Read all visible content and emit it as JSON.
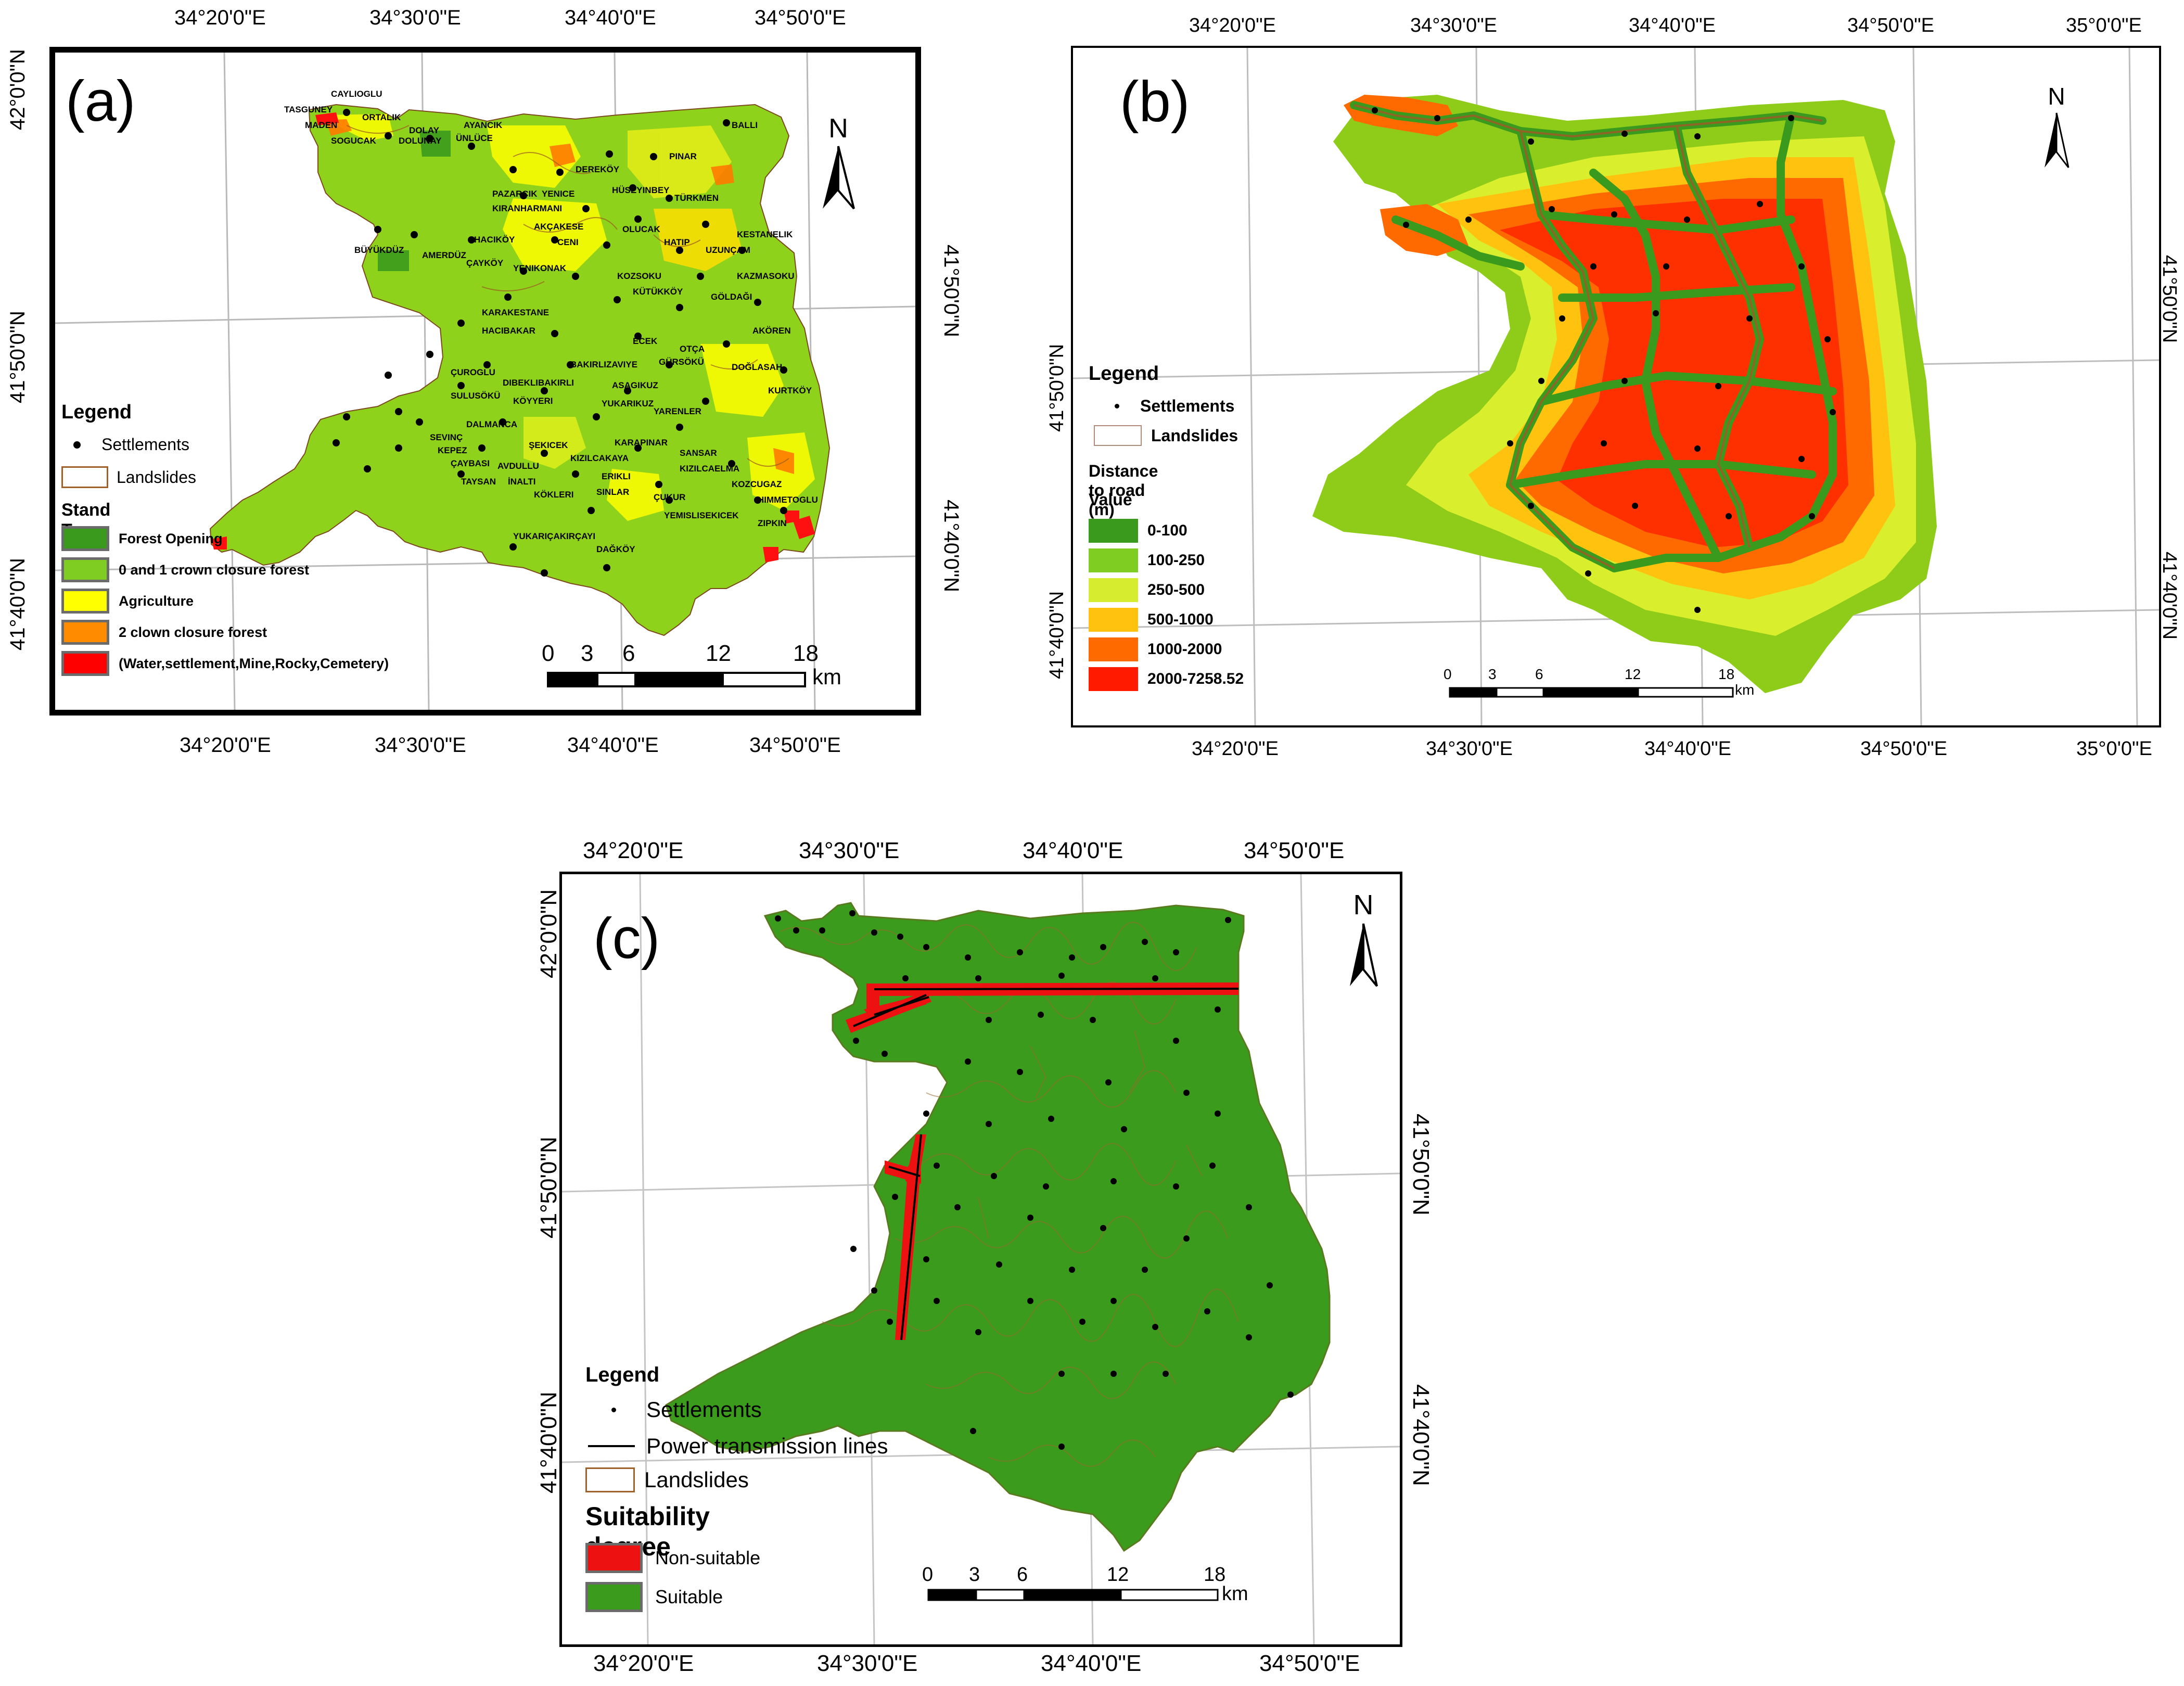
{
  "panel_a": {
    "label": "(a)",
    "top_ticks": [
      "34°20'0\"E",
      "34°30'0\"E",
      "34°40'0\"E",
      "34°50'0\"E"
    ],
    "bottom_ticks": [
      "34°20'0\"E",
      "34°30'0\"E",
      "34°40'0\"E",
      "34°50'0\"E"
    ],
    "left_ticks": [
      "42°0'0\"N",
      "41°50'0\"N",
      "41°40'0\"N"
    ],
    "right_ticks": [
      "41°50'0\"N",
      "41°40'0\"N"
    ],
    "legend": {
      "title": "Legend",
      "settlements": "Settlements",
      "landslides": "Landslides",
      "stand_type_title": "Stand Type",
      "classes": [
        {
          "label": "Forest Opening",
          "color": "#3a9a1e"
        },
        {
          "label": "0 and 1 crown closure forest",
          "color": "#7fcc22"
        },
        {
          "label": "Agriculture",
          "color": "#ffff00"
        },
        {
          "label": "2 clown closure forest",
          "color": "#ff8c00"
        },
        {
          "label": "(Water,settlement,Mine,Rocky,Cemetery)",
          "color": "#ff0000"
        }
      ]
    },
    "north": "N",
    "scale": {
      "ticks": [
        "0",
        "3",
        "6",
        "12",
        "18"
      ],
      "unit": "km"
    },
    "places": [
      "CAYLIOGLU",
      "TASGUNEY",
      "ORTALIK",
      "MADEN",
      "DOLAY",
      "SOGUCAK",
      "DOLUNAY",
      "AYANCIK",
      "ÜNLÜCE",
      "BALLI",
      "DEREKÖY",
      "PINAR",
      "PAZARCIK",
      "YENICE",
      "HÜSEYINBEY",
      "TÜRKMEN",
      "KIRANHARMANI",
      "AKÇAKESE",
      "OLUCAK",
      "BÜYÜKDÜZ",
      "HACIKÖY",
      "CENI",
      "HATIP",
      "KESTANELIK",
      "AMERDÜZ",
      "ÇAYKÖY",
      "UZUNÇAM",
      "YENIKONAK",
      "KOZSOKU",
      "KAZMASOKU",
      "KÜTÜKKÖY",
      "GÖLDAĞI",
      "KARAKESTANE",
      "HACIBAKAR",
      "ECEK",
      "OTÇA",
      "AKÖREN",
      "BAKIRLIZAVIYE",
      "GÜRSÖKÜ",
      "DOĞLASAH",
      "ÇUROGLU",
      "DIBEKLIBAKIRLI",
      "ASAGIKUZ",
      "KURTKÖY",
      "SULUSÖKÜ",
      "KÖYYERI",
      "YUKARIKUZ",
      "YARENLER",
      "DALMANCA",
      "SEVINÇ",
      "KEPEZ",
      "ŞEKICEK",
      "KARAPINAR",
      "SANSAR",
      "KIZILCAKAYA",
      "KIZILCAELMA",
      "ÇAYBASI",
      "AVDULLU",
      "TAYSAN",
      "İNALTI",
      "ERIKLI",
      "KÖKLERI",
      "SINLAR",
      "ÇUKUR",
      "KOZCUGAZ",
      "HIMMETOGLU",
      "YEMISLISEKICEK",
      "ZIPKIN",
      "YUKARIÇAKIRÇAYI",
      "DAĞKÖY"
    ]
  },
  "panel_b": {
    "label": "(b)",
    "top_ticks": [
      "34°20'0\"E",
      "34°30'0\"E",
      "34°40'0\"E",
      "34°50'0\"E",
      "35°0'0\"E"
    ],
    "bottom_ticks": [
      "34°20'0\"E",
      "34°30'0\"E",
      "34°40'0\"E",
      "34°50'0\"E",
      "35°0'0\"E"
    ],
    "left_ticks": [
      "41°50'0\"N",
      "41°40'0\"N"
    ],
    "right_ticks": [
      "41°50'0\"N",
      "41°40'0\"N"
    ],
    "legend": {
      "title": "Legend",
      "settlements": "Settlements",
      "landslides": "Landslides",
      "distance_title": "Distance to road (m)",
      "value_title": "Value",
      "classes": [
        {
          "label": "0-100",
          "color": "#3a9a1e"
        },
        {
          "label": "100-250",
          "color": "#7fcc22"
        },
        {
          "label": "250-500",
          "color": "#d6ec2e"
        },
        {
          "label": "500-1000",
          "color": "#ffc20e"
        },
        {
          "label": "1000-2000",
          "color": "#ff6a00"
        },
        {
          "label": "2000-7258.52",
          "color": "#ff1a00"
        }
      ]
    },
    "north": "N",
    "scale": {
      "ticks": [
        "0",
        "3",
        "6",
        "12",
        "18"
      ],
      "unit": "km"
    }
  },
  "panel_c": {
    "label": "(c)",
    "top_ticks": [
      "34°20'0\"E",
      "34°30'0\"E",
      "34°40'0\"E",
      "34°50'0\"E"
    ],
    "bottom_ticks": [
      "34°20'0\"E",
      "34°30'0\"E",
      "34°40'0\"E",
      "34°50'0\"E"
    ],
    "left_ticks": [
      "42°0'0\"N",
      "41°50'0\"N",
      "41°40'0\"N"
    ],
    "right_ticks": [
      "41°50'0\"N",
      "41°40'0\"N"
    ],
    "legend": {
      "title": "Legend",
      "settlements": "Settlements",
      "power_lines": "Power transmission lines",
      "landslides": "Landslides",
      "suitability_title": "Suitability degree",
      "classes": [
        {
          "label": "Non-suitable",
          "color": "#ee1111"
        },
        {
          "label": "Suitable",
          "color": "#3b9b1d"
        }
      ]
    },
    "north": "N",
    "scale": {
      "ticks": [
        "0",
        "3",
        "6",
        "12",
        "18"
      ],
      "unit": "km"
    }
  }
}
